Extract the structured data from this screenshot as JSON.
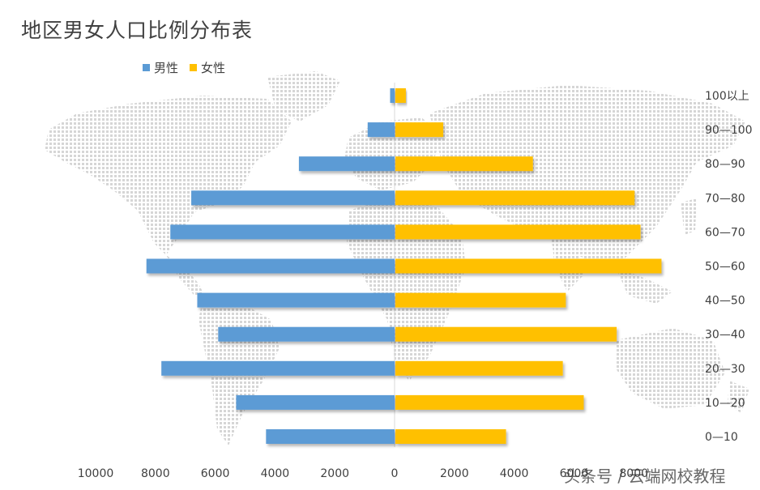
{
  "chart_data": {
    "type": "bar",
    "orientation": "horizontal",
    "title": "地区男女人口比例分布表",
    "categories": [
      "0—10",
      "10—20",
      "20—30",
      "30—40",
      "40—50",
      "50—60",
      "60—70",
      "70—80",
      "80—90",
      "90—100",
      "100以上"
    ],
    "series": [
      {
        "name": "男性",
        "color": "#5b9bd5",
        "values": [
          4300,
          5300,
          7800,
          5900,
          6600,
          8300,
          7500,
          6800,
          3200,
          900,
          150
        ]
      },
      {
        "name": "女性",
        "color": "#ffc000",
        "values": [
          3700,
          6300,
          5600,
          7400,
          5700,
          8900,
          8200,
          8000,
          4600,
          1600,
          350
        ]
      }
    ],
    "x_ticks": [
      "10000",
      "8000",
      "6000",
      "4000",
      "2000",
      "0",
      "2000",
      "4000",
      "6000",
      "8000"
    ],
    "xlim": [
      -10000,
      10000
    ],
    "legend_position": "top-left",
    "grid": false
  },
  "watermark": "头条号 / 云端网校教程"
}
